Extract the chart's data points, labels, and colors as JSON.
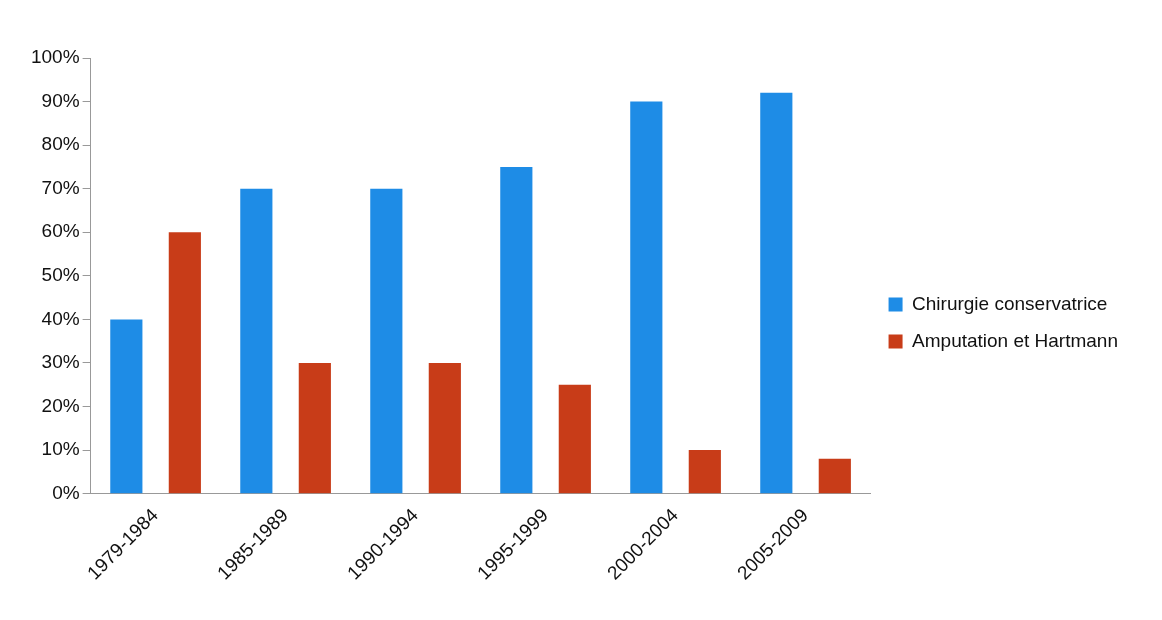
{
  "chart_data": {
    "type": "bar",
    "categories": [
      "1979-1984",
      "1985-1989",
      "1990-1994",
      "1995-1999",
      "2000-2004",
      "2005-2009"
    ],
    "series": [
      {
        "name": "Chirurgie conservatrice",
        "color": "#1e8ce6",
        "values": [
          40,
          70,
          70,
          75,
          90,
          92
        ]
      },
      {
        "name": "Amputation et Hartmann",
        "color": "#c83c18",
        "values": [
          60,
          30,
          30,
          25,
          10,
          8
        ]
      }
    ],
    "ylim": [
      0,
      100
    ],
    "yticks": [
      {
        "value": 0,
        "label": "0%"
      },
      {
        "value": 10,
        "label": "10%"
      },
      {
        "value": 20,
        "label": "20%"
      },
      {
        "value": 30,
        "label": "30%"
      },
      {
        "value": 40,
        "label": "40%"
      },
      {
        "value": 50,
        "label": "50%"
      },
      {
        "value": 60,
        "label": "60%"
      },
      {
        "value": 70,
        "label": "70%"
      },
      {
        "value": 80,
        "label": "80%"
      },
      {
        "value": 90,
        "label": "90%"
      },
      {
        "value": 100,
        "label": "100%"
      }
    ],
    "grid": false,
    "legend": "right"
  }
}
